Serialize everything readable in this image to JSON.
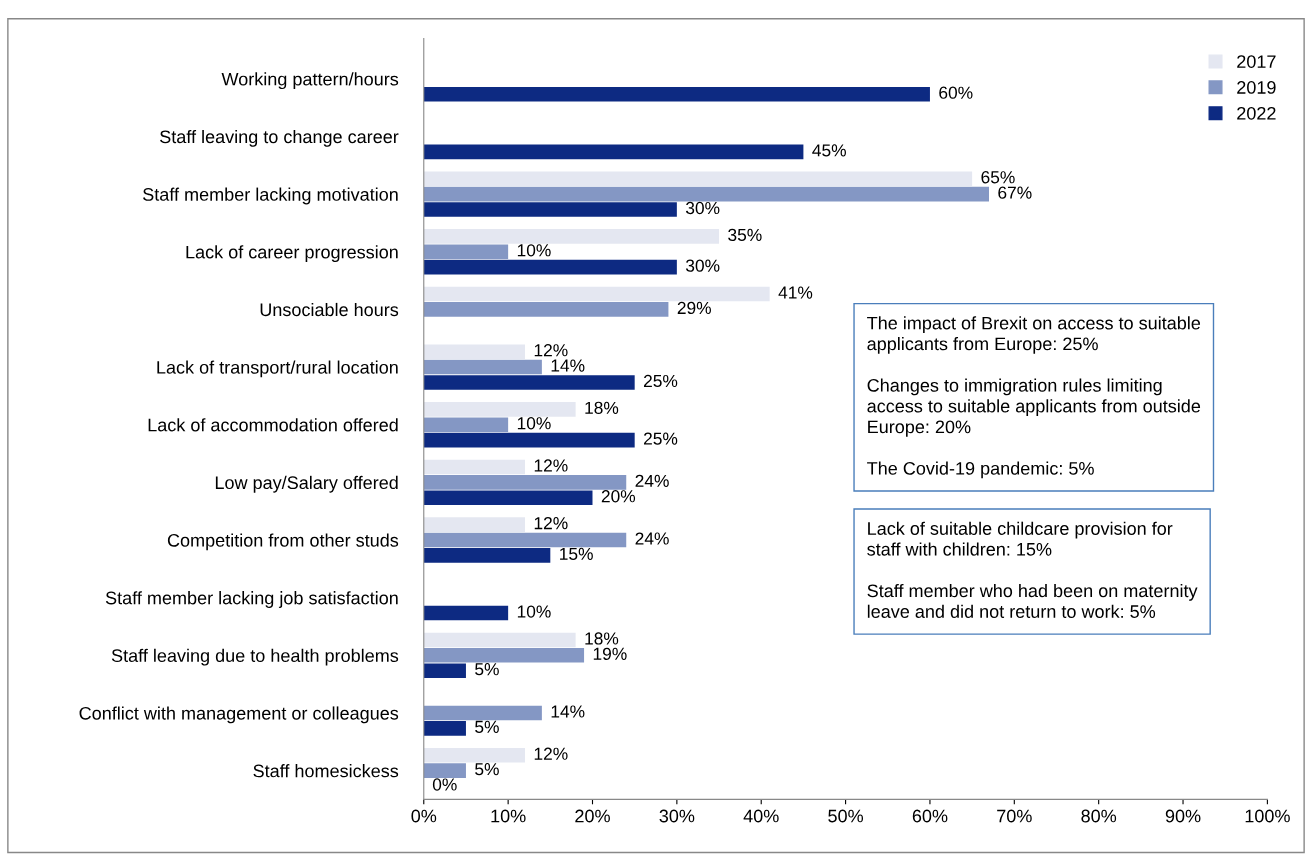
{
  "chart_data": {
    "type": "bar",
    "orientation": "horizontal",
    "categories": [
      "Working pattern/hours",
      "Staff leaving to change career",
      "Staff member lacking motivation",
      "Lack of career progression",
      "Unsociable hours",
      "Lack of transport/rural location",
      "Lack of accommodation offered",
      "Low pay/Salary offered",
      "Competition from other studs",
      "Staff member lacking job satisfaction",
      "Staff leaving due to health problems",
      "Conflict with management or colleagues",
      "Staff homesickess"
    ],
    "series": [
      {
        "name": "2017",
        "color": "#e4e7f1",
        "values": [
          null,
          null,
          65,
          35,
          41,
          12,
          18,
          12,
          12,
          null,
          18,
          null,
          12
        ],
        "value_labels": [
          null,
          null,
          "65%",
          "35%",
          "41%",
          "12%",
          "18%",
          "12%",
          "12%",
          null,
          "18%",
          null,
          "12%"
        ]
      },
      {
        "name": "2019",
        "color": "#8497c4",
        "values": [
          null,
          null,
          67,
          10,
          29,
          14,
          10,
          24,
          24,
          null,
          19,
          14,
          5
        ],
        "value_labels": [
          null,
          null,
          "67%",
          "10%",
          "29%",
          "14%",
          "10%",
          "24%",
          "24%",
          null,
          "19%",
          "14%",
          "5%"
        ]
      },
      {
        "name": "2022",
        "color": "#0d2a82",
        "values": [
          60,
          45,
          30,
          30,
          null,
          25,
          25,
          20,
          15,
          10,
          5,
          5,
          0
        ],
        "value_labels": [
          "60%",
          "45%",
          "30%",
          "30%",
          null,
          "25%",
          "25%",
          "20%",
          "15%",
          "10%",
          "5%",
          "5%",
          "0%"
        ]
      }
    ],
    "xlim": [
      0,
      100
    ],
    "xticks": [
      {
        "value": 0,
        "label": "0%"
      },
      {
        "value": 10,
        "label": "10%"
      },
      {
        "value": 20,
        "label": "20%"
      },
      {
        "value": 30,
        "label": "30%"
      },
      {
        "value": 40,
        "label": "40%"
      },
      {
        "value": 50,
        "label": "50%"
      },
      {
        "value": 60,
        "label": "60%"
      },
      {
        "value": 70,
        "label": "70%"
      },
      {
        "value": 80,
        "label": "80%"
      },
      {
        "value": 90,
        "label": "90%"
      },
      {
        "value": 100,
        "label": "100%"
      }
    ],
    "legend": "top right",
    "annotations": [
      "The impact of Brexit on access to suitable\napplicants from Europe: 25%\n\nChanges to immigration rules limiting\naccess to suitable applicants from outside\nEurope: 20%\n\nThe Covid-19 pandemic: 5%",
      "Lack of suitable childcare provision for\nstaff with children: 15%\n\nStaff member who had been on maternity\nleave and did not return to work: 5%"
    ]
  }
}
